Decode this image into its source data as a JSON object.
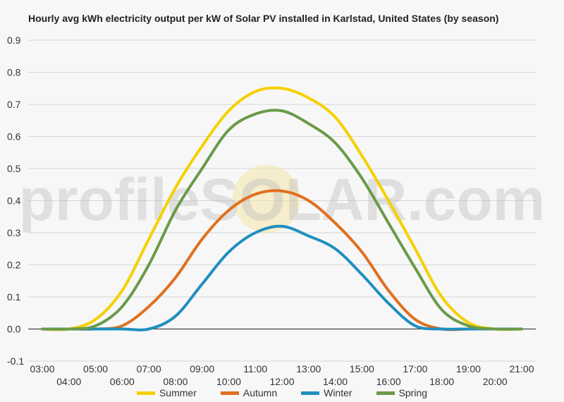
{
  "chart_data": {
    "type": "line",
    "title": "Hourly avg kWh electricity output per kW of Solar PV installed in Karlstad, United States (by season)",
    "xlabel": "",
    "ylabel": "",
    "x": [
      "03:00",
      "04:00",
      "05:00",
      "06:00",
      "07:00",
      "08:00",
      "09:00",
      "10:00",
      "11:00",
      "12:00",
      "13:00",
      "14:00",
      "15:00",
      "16:00",
      "17:00",
      "18:00",
      "19:00",
      "20:00",
      "21:00"
    ],
    "y_ticks": [
      "-0.1",
      "0.0",
      "0.1",
      "0.2",
      "0.3",
      "0.4",
      "0.5",
      "0.6",
      "0.7",
      "0.8",
      "0.9"
    ],
    "ylim": [
      -0.1,
      0.9
    ],
    "grid": true,
    "legend_position": "bottom",
    "watermark": "profileSOLAR.com",
    "series": [
      {
        "name": "Summer",
        "color": "#f5d000",
        "values": [
          0.0,
          0.0,
          0.03,
          0.12,
          0.28,
          0.44,
          0.57,
          0.68,
          0.74,
          0.75,
          0.72,
          0.66,
          0.54,
          0.4,
          0.25,
          0.1,
          0.02,
          0.0,
          0.0
        ]
      },
      {
        "name": "Autumn",
        "color": "#e07020",
        "values": [
          0.0,
          0.0,
          0.0,
          0.01,
          0.07,
          0.16,
          0.28,
          0.37,
          0.42,
          0.43,
          0.4,
          0.33,
          0.24,
          0.12,
          0.03,
          0.0,
          0.0,
          0.0,
          0.0
        ]
      },
      {
        "name": "Winter",
        "color": "#1f8fbf",
        "values": [
          0.0,
          0.0,
          0.0,
          0.0,
          0.0,
          0.04,
          0.14,
          0.24,
          0.3,
          0.32,
          0.29,
          0.25,
          0.17,
          0.08,
          0.01,
          0.0,
          0.0,
          0.0,
          0.0
        ]
      },
      {
        "name": "Spring",
        "color": "#6a9a4a",
        "values": [
          0.0,
          0.0,
          0.01,
          0.07,
          0.2,
          0.37,
          0.5,
          0.62,
          0.67,
          0.68,
          0.64,
          0.58,
          0.47,
          0.33,
          0.19,
          0.06,
          0.01,
          0.0,
          0.0
        ]
      }
    ]
  }
}
